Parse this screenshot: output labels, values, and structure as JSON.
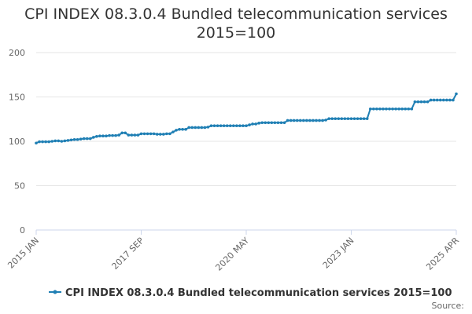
{
  "chart_data": {
    "type": "line",
    "title": "CPI INDEX 08.3.0.4 Bundled telecommunication services 2015=100",
    "ylim": [
      0,
      200
    ],
    "y_ticks": [
      0,
      50,
      100,
      150,
      200
    ],
    "x_tick_labels": [
      "2015 JAN",
      "2017 SEP",
      "2020 MAY",
      "2023 JAN",
      "2025 APR"
    ],
    "grid": true,
    "legend_position": "bottom",
    "series": [
      {
        "name": "CPI INDEX 08.3.0.4 Bundled telecommunication services 2015=100",
        "color": "#1f7fb4",
        "x_start": "2015 JAN",
        "x_end": "2025 APR",
        "values": [
          98.0,
          99.5,
          99.5,
          99.5,
          99.5,
          100.0,
          100.5,
          100.5,
          100.0,
          100.5,
          101.0,
          101.5,
          102.0,
          102.0,
          102.5,
          103.0,
          103.0,
          103.0,
          104.5,
          105.5,
          106.0,
          106.0,
          106.0,
          106.5,
          106.5,
          106.5,
          107.0,
          109.5,
          109.5,
          107.0,
          107.0,
          107.0,
          107.0,
          108.5,
          108.5,
          108.5,
          108.5,
          108.5,
          108.0,
          108.0,
          108.0,
          108.5,
          108.5,
          110.5,
          112.5,
          113.5,
          113.5,
          113.5,
          115.5,
          115.5,
          115.5,
          115.5,
          115.5,
          115.5,
          116.0,
          117.5,
          117.5,
          117.5,
          117.5,
          117.5,
          117.5,
          117.5,
          117.5,
          117.5,
          117.5,
          117.5,
          117.5,
          118.5,
          119.5,
          119.5,
          120.5,
          121.0,
          121.0,
          121.0,
          121.0,
          121.0,
          121.0,
          121.0,
          121.0,
          123.5,
          123.5,
          123.5,
          123.5,
          123.5,
          123.5,
          123.5,
          123.5,
          123.5,
          123.5,
          123.5,
          123.5,
          124.0,
          125.5,
          125.5,
          125.5,
          125.5,
          125.5,
          125.5,
          125.5,
          125.5,
          125.5,
          125.5,
          125.5,
          125.5,
          125.5,
          136.5,
          136.5,
          136.5,
          136.5,
          136.5,
          136.5,
          136.5,
          136.5,
          136.5,
          136.5,
          136.5,
          136.5,
          136.5,
          136.5,
          144.5,
          144.5,
          144.5,
          144.5,
          144.5,
          146.5,
          146.5,
          146.5,
          146.5,
          146.5,
          146.5,
          146.5,
          146.5,
          153.5
        ]
      }
    ]
  },
  "source": {
    "label": "Source:"
  }
}
